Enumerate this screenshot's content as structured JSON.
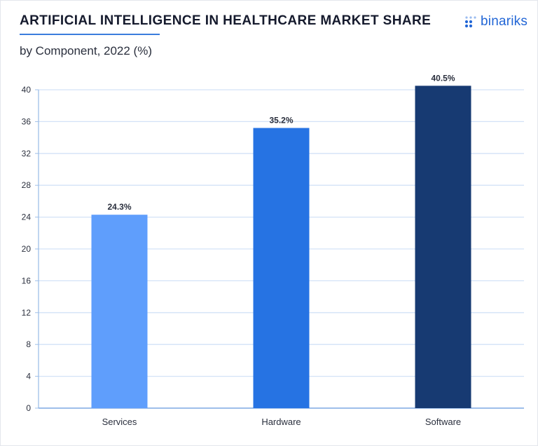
{
  "header": {
    "title": "ARTIFICIAL INTELLIGENCE IN HEALTHCARE MARKET SHARE",
    "subtitle": "by Component, 2022 (%)"
  },
  "brand": {
    "logo_text": "binariks",
    "icon": "dot-grid-icon",
    "color": "#2266d6"
  },
  "chart_data": {
    "type": "bar",
    "categories": [
      "Services",
      "Hardware",
      "Software"
    ],
    "values": [
      24.3,
      35.2,
      40.5
    ],
    "value_labels": [
      "24.3%",
      "35.2%",
      "40.5%"
    ],
    "colors": [
      "#5f9efc",
      "#2673e3",
      "#173a72"
    ],
    "ylim": [
      0,
      40
    ],
    "yticks": [
      0,
      4,
      8,
      12,
      16,
      20,
      24,
      28,
      32,
      36,
      40
    ],
    "grid": true,
    "legend": "none"
  }
}
